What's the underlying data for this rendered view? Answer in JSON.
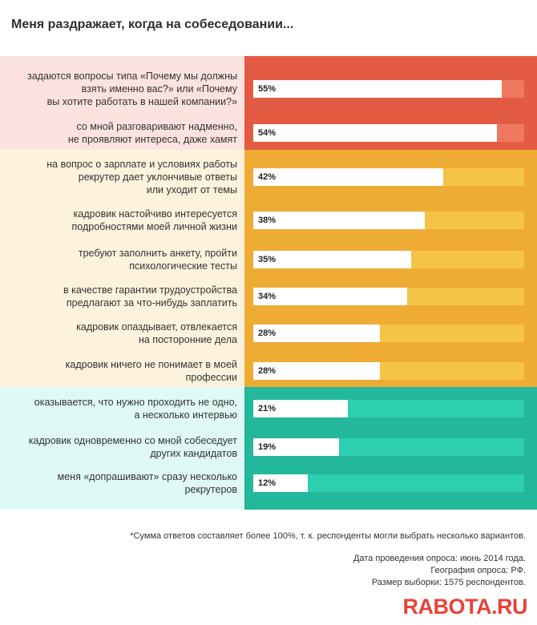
{
  "title": "Меня раздражает, когда на собеседовании...",
  "colors": {
    "red_left": "#fde3e0",
    "red_right": "#e45b44",
    "red_track": "#ef7860",
    "orange_left": "#fdf3dd",
    "orange_right": "#efac35",
    "orange_track": "#f5c347",
    "teal_left": "#dffaf4",
    "teal_right": "#23b79b",
    "teal_track": "#2ecfae"
  },
  "chart_data": {
    "type": "bar",
    "orientation": "horizontal",
    "xlim": [
      0,
      100
    ],
    "unit": "%",
    "categories": [
      "задаются вопросы типа «Почему мы должны взять именно вас?» или «Почему вы хотите работать в нашей компании?»",
      "со мной разговаривают надменно, не проявляют интереса, даже хамят",
      "на вопрос о зарплате и условиях работы рекрутер дает уклончивые ответы или уходит от темы",
      "кадровик настойчиво интересуется подробностями моей личной жизни",
      "требуют заполнить анкету, пройти психологические тесты",
      "в качестве гарантии трудоустройства предлагают за что-нибудь заплатить",
      "кадровик опаздывает, отвлекается на посторонние дела",
      "кадровик ничего не понимает в моей профессии",
      "оказывается, что нужно проходить не одно, а несколько интервью",
      "кадровик одновременно со мной собеседует других кандидатов",
      "меня «допрашивают» сразу несколько рекрутеров"
    ],
    "values": [
      55,
      54,
      42,
      38,
      35,
      34,
      28,
      28,
      21,
      19,
      12
    ],
    "value_labels": [
      "55%",
      "54%",
      "42%",
      "38%",
      "35%",
      "34%",
      "28%",
      "28%",
      "21%",
      "19%",
      "12%"
    ],
    "groups": [
      "red",
      "red",
      "orange",
      "orange",
      "orange",
      "orange",
      "orange",
      "orange",
      "teal",
      "teal",
      "teal"
    ]
  },
  "rows": [
    {
      "lines": [
        "задаются вопросы типа «Почему мы должны",
        "взять именно вас?» или «Почему",
        "вы хотите работать в нашей компании?»"
      ],
      "pct": "55%"
    },
    {
      "lines": [
        "со мной разговаривают надменно,",
        "не проявляют интереса, даже хамят"
      ],
      "pct": "54%"
    },
    {
      "lines": [
        "на вопрос о зарплате и условиях работы",
        "рекрутер дает уклончивые ответы",
        "или уходит от темы"
      ],
      "pct": "42%"
    },
    {
      "lines": [
        "кадровик настойчиво интересуется",
        "подробностями моей личной жизни"
      ],
      "pct": "38%"
    },
    {
      "lines": [
        "требуют заполнить анкету, пройти",
        "психологические тесты"
      ],
      "pct": "35%"
    },
    {
      "lines": [
        "в качестве гарантии трудоустройства",
        "предлагают за что-нибудь заплатить"
      ],
      "pct": "34%"
    },
    {
      "lines": [
        "кадровик опаздывает, отвлекается",
        "на посторонние дела"
      ],
      "pct": "28%"
    },
    {
      "lines": [
        "кадровик ничего не понимает в моей",
        "профессии"
      ],
      "pct": "28%"
    },
    {
      "lines": [
        "оказывается, что нужно проходить не одно,",
        "а несколько интервью"
      ],
      "pct": "21%"
    },
    {
      "lines": [
        "кадровик одновременно со мной собеседует",
        "других кандидатов"
      ],
      "pct": "19%"
    },
    {
      "lines": [
        "меня «допрашивают» сразу несколько",
        "рекрутеров"
      ],
      "pct": "12%"
    }
  ],
  "footnote": "*Сумма ответов составляет более 100%, т. к. респонденты могли выбрать несколько вариантов.",
  "meta": {
    "date": "Дата проведения опроса: июнь 2014 года.",
    "geography": "География опроса: РФ.",
    "sample": "Размер выборки: 1575 респондентов."
  },
  "logo": "RABOTA.RU"
}
